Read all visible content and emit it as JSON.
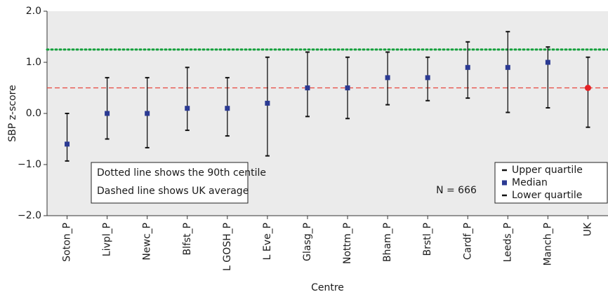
{
  "chart_data": {
    "type": "errorbar",
    "x_label": "Centre",
    "y_label": "SBP z-score",
    "categories": [
      "Soton_P",
      "Livpl_P",
      "Newc_P",
      "Blfst_P",
      "L GOSH_P",
      "L Eve_P",
      "Glasg_P",
      "Nottm_P",
      "Bham_P",
      "Brstl_P",
      "Cardf_P",
      "Leeds_P",
      "Manch_P",
      "UK"
    ],
    "series": [
      {
        "name": "Upper quartile",
        "color": "#111111",
        "values": [
          0.0,
          0.7,
          0.7,
          0.9,
          0.7,
          1.1,
          1.2,
          1.1,
          1.2,
          1.1,
          1.4,
          1.6,
          1.3,
          1.1
        ]
      },
      {
        "name": "Median",
        "color": "#2b3a93",
        "values": [
          -0.6,
          0.0,
          0.0,
          0.1,
          0.1,
          0.2,
          0.5,
          0.5,
          0.7,
          0.7,
          0.9,
          0.9,
          1.0,
          0.5
        ],
        "marker_colors": [
          "#2b3a93",
          "#2b3a93",
          "#2b3a93",
          "#2b3a93",
          "#2b3a93",
          "#2b3a93",
          "#2b3a93",
          "#2b3a93",
          "#2b3a93",
          "#2b3a93",
          "#2b3a93",
          "#2b3a93",
          "#2b3a93",
          "#e42226"
        ]
      },
      {
        "name": "Lower quartile",
        "color": "#111111",
        "values": [
          -0.93,
          -0.5,
          -0.67,
          -0.33,
          -0.44,
          -0.83,
          -0.06,
          -0.1,
          0.17,
          0.25,
          0.3,
          0.02,
          0.11,
          -0.27
        ]
      }
    ],
    "reference_lines": [
      {
        "value": 1.25,
        "color": "#14a03c",
        "style": "dotted"
      },
      {
        "value": 0.5,
        "color": "#e8453c",
        "style": "dashed"
      }
    ],
    "annotations": [
      "Dotted line shows the 90th centile",
      "Dashed line shows UK average"
    ],
    "note": "N = 666",
    "ylim": [
      -2.0,
      2.0
    ],
    "yticks": [
      {
        "value": -2.0,
        "label": "−2.0"
      },
      {
        "value": -1.0,
        "label": "−1.0"
      },
      {
        "value": 0.0,
        "label": "0.0"
      },
      {
        "value": 1.0,
        "label": "1.0"
      },
      {
        "value": 2.0,
        "label": "2.0"
      }
    ],
    "legend": "lower right",
    "background": "#ebebeb"
  }
}
